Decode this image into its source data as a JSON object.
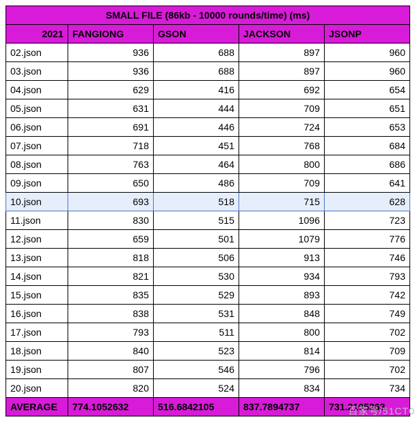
{
  "title": "SMALL FILE (86kb - 10000 rounds/time) (ms)",
  "year": "2021",
  "columns": [
    "FANGIONG",
    "GSON",
    "JACKSON",
    "JSONP"
  ],
  "highlight_index": 8,
  "rows": [
    {
      "name": "02.json",
      "v": [
        "936",
        "688",
        "897",
        "960"
      ]
    },
    {
      "name": "03.json",
      "v": [
        "936",
        "688",
        "897",
        "960"
      ]
    },
    {
      "name": "04.json",
      "v": [
        "629",
        "416",
        "692",
        "654"
      ]
    },
    {
      "name": "05.json",
      "v": [
        "631",
        "444",
        "709",
        "651"
      ]
    },
    {
      "name": "06.json",
      "v": [
        "691",
        "446",
        "724",
        "653"
      ]
    },
    {
      "name": "07.json",
      "v": [
        "718",
        "451",
        "768",
        "684"
      ]
    },
    {
      "name": "08.json",
      "v": [
        "763",
        "464",
        "800",
        "686"
      ]
    },
    {
      "name": "09.json",
      "v": [
        "650",
        "486",
        "709",
        "641"
      ]
    },
    {
      "name": "10.json",
      "v": [
        "693",
        "518",
        "715",
        "628"
      ]
    },
    {
      "name": "11.json",
      "v": [
        "830",
        "515",
        "1096",
        "723"
      ]
    },
    {
      "name": "12.json",
      "v": [
        "659",
        "501",
        "1079",
        "776"
      ]
    },
    {
      "name": "13.json",
      "v": [
        "818",
        "506",
        "913",
        "746"
      ]
    },
    {
      "name": "14.json",
      "v": [
        "821",
        "530",
        "934",
        "793"
      ]
    },
    {
      "name": "15.json",
      "v": [
        "835",
        "529",
        "893",
        "742"
      ]
    },
    {
      "name": "16.json",
      "v": [
        "838",
        "531",
        "848",
        "749"
      ]
    },
    {
      "name": "17.json",
      "v": [
        "793",
        "511",
        "800",
        "702"
      ]
    },
    {
      "name": "18.json",
      "v": [
        "840",
        "523",
        "814",
        "709"
      ]
    },
    {
      "name": "19.json",
      "v": [
        "807",
        "546",
        "796",
        "702"
      ]
    },
    {
      "name": "20.json",
      "v": [
        "820",
        "524",
        "834",
        "734"
      ]
    }
  ],
  "average": {
    "label": "AVERAGE",
    "v": [
      "774.1052632",
      "516.6842105",
      "837.7894737",
      "731.2105263"
    ]
  },
  "watermark": "百家号/51CT0",
  "colors": {
    "header_bg": "#d81bd8",
    "highlight_bg": "#e6eefb",
    "highlight_border": "#4a76c9",
    "border": "#000000",
    "watermark": "#bdbdbd"
  }
}
